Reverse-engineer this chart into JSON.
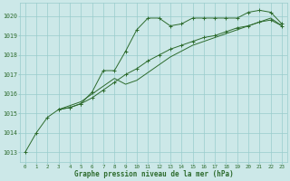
{
  "title": "Graphe pression niveau de la mer (hPa)",
  "bg_color": "#cce8e8",
  "grid_color": "#99cccc",
  "line_color": "#2d6b2d",
  "x_ticks": [
    0,
    1,
    2,
    3,
    4,
    5,
    6,
    7,
    8,
    9,
    10,
    11,
    12,
    13,
    14,
    15,
    16,
    17,
    18,
    19,
    20,
    21,
    22,
    23
  ],
  "ylim": [
    1012.5,
    1020.7
  ],
  "yticks": [
    1013,
    1014,
    1015,
    1016,
    1017,
    1018,
    1019,
    1020
  ],
  "line1_x": [
    0,
    1,
    2,
    3,
    4,
    5,
    6,
    7,
    8,
    9,
    10,
    11,
    12,
    13,
    14,
    15,
    16,
    17,
    18,
    19,
    20,
    21,
    22,
    23
  ],
  "line1_y": [
    1013.0,
    1014.0,
    1014.8,
    1015.2,
    1015.3,
    1015.5,
    1016.1,
    1017.2,
    1017.2,
    1018.2,
    1019.3,
    1019.9,
    1019.9,
    1019.5,
    1019.6,
    1019.9,
    1019.9,
    1019.9,
    1019.9,
    1019.9,
    1020.2,
    1020.3,
    1020.2,
    1019.6
  ],
  "line2_x": [
    3,
    4,
    5,
    6,
    7,
    8,
    9,
    10,
    11,
    12,
    13,
    14,
    15,
    16,
    17,
    18,
    19,
    20,
    21,
    22,
    23
  ],
  "line2_y": [
    1015.2,
    1015.3,
    1015.5,
    1015.8,
    1016.2,
    1016.6,
    1017.0,
    1017.3,
    1017.7,
    1018.0,
    1018.3,
    1018.5,
    1018.7,
    1018.9,
    1019.0,
    1019.2,
    1019.4,
    1019.5,
    1019.7,
    1019.8,
    1019.5
  ],
  "line3_x": [
    3,
    4,
    5,
    6,
    7,
    8,
    9,
    10,
    11,
    12,
    13,
    14,
    15,
    16,
    17,
    18,
    19,
    20,
    21,
    22,
    23
  ],
  "line3_y": [
    1015.2,
    1015.4,
    1015.6,
    1016.0,
    1016.4,
    1016.8,
    1016.5,
    1016.7,
    1017.1,
    1017.5,
    1017.9,
    1018.2,
    1018.5,
    1018.7,
    1018.9,
    1019.1,
    1019.3,
    1019.5,
    1019.7,
    1019.9,
    1019.5
  ]
}
